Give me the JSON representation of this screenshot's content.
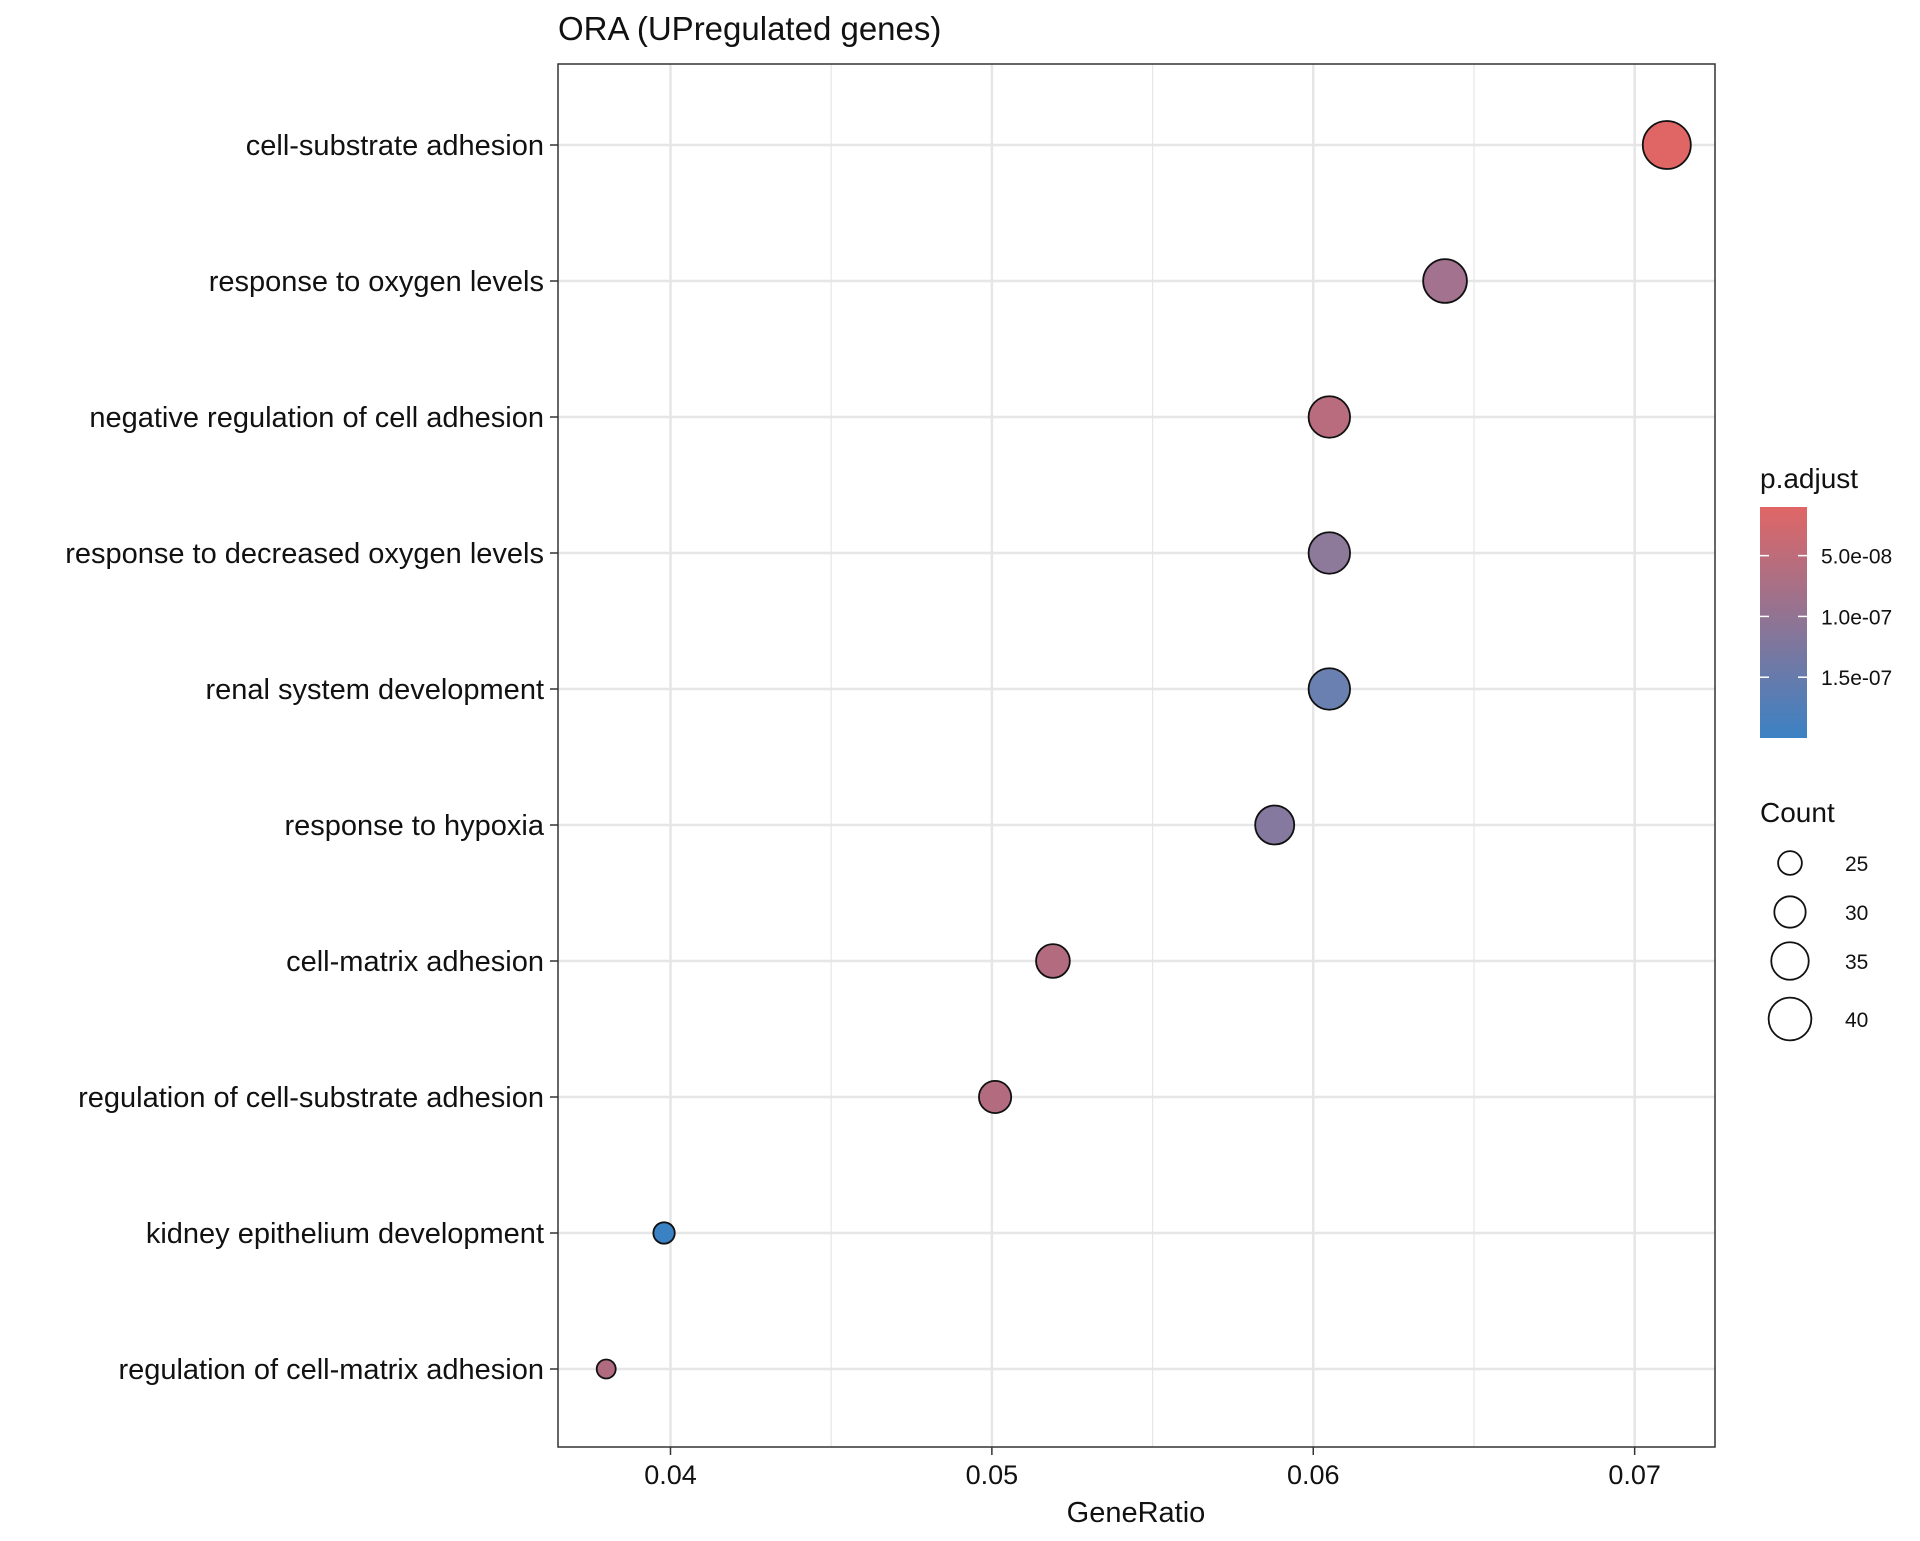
{
  "chart_data": {
    "type": "scatter",
    "title": "ORA (UPregulated genes)",
    "xlabel": "GeneRatio",
    "ylabel": "",
    "xlim": [
      0.0365,
      0.0725
    ],
    "x_ticks": [
      0.04,
      0.05,
      0.06,
      0.07
    ],
    "x_tick_labels": [
      "0.04",
      "0.05",
      "0.06",
      "0.07"
    ],
    "grid": true,
    "categories": [
      "cell-substrate adhesion",
      "response to oxygen levels",
      "negative regulation of cell adhesion",
      "response to decreased oxygen levels",
      "renal system development",
      "response to hypoxia",
      "cell-matrix adhesion",
      "regulation of cell-substrate adhesion",
      "kidney epithelium development",
      "regulation of cell-matrix adhesion"
    ],
    "points": [
      {
        "term": "cell-substrate adhesion",
        "gene_ratio": 0.071,
        "count": 42,
        "p_adjust": 1e-08,
        "color": "#e06666"
      },
      {
        "term": "response to oxygen levels",
        "gene_ratio": 0.0641,
        "count": 38,
        "p_adjust": 9.5e-08,
        "color": "#a2728f"
      },
      {
        "term": "negative regulation of cell adhesion",
        "gene_ratio": 0.0605,
        "count": 36,
        "p_adjust": 6e-08,
        "color": "#b86c7e"
      },
      {
        "term": "response to decreased oxygen levels",
        "gene_ratio": 0.0605,
        "count": 36,
        "p_adjust": 1.25e-07,
        "color": "#8d7a9a"
      },
      {
        "term": "renal system development",
        "gene_ratio": 0.0605,
        "count": 36,
        "p_adjust": 1.6e-07,
        "color": "#6a80b0"
      },
      {
        "term": "response to hypoxia",
        "gene_ratio": 0.0588,
        "count": 34,
        "p_adjust": 1.35e-07,
        "color": "#8679a0"
      },
      {
        "term": "cell-matrix adhesion",
        "gene_ratio": 0.0519,
        "count": 30,
        "p_adjust": 6.5e-08,
        "color": "#b36b7f"
      },
      {
        "term": "regulation of cell-substrate adhesion",
        "gene_ratio": 0.0501,
        "count": 29,
        "p_adjust": 6.5e-08,
        "color": "#b36b7f"
      },
      {
        "term": "kidney epithelium development",
        "gene_ratio": 0.0398,
        "count": 23,
        "p_adjust": 2e-07,
        "color": "#3b82c4"
      },
      {
        "term": "regulation of cell-matrix adhesion",
        "gene_ratio": 0.038,
        "count": 22,
        "p_adjust": 7e-08,
        "color": "#b06b80"
      }
    ],
    "legend_color": {
      "title": "p.adjust",
      "gradient_top": "#e06666",
      "gradient_bottom": "#3b82c4",
      "range": [
        1e-08,
        2e-07
      ],
      "ticks": [
        5e-08,
        1e-07,
        1.5e-07
      ],
      "tick_labels": [
        "5.0e-08",
        "1.0e-07",
        "1.5e-07"
      ]
    },
    "legend_size": {
      "title": "Count",
      "values": [
        25,
        30,
        35,
        40
      ],
      "labels": [
        "25",
        "30",
        "35",
        "40"
      ]
    },
    "size_range": [
      22,
      42
    ],
    "point_stroke": "#111111",
    "panel_border": "#333333",
    "grid_color": "#e6e6e6"
  }
}
